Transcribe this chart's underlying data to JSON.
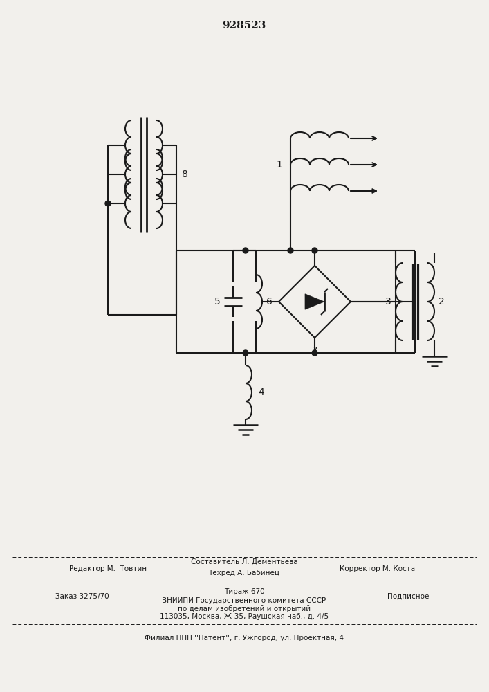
{
  "title": "928523",
  "bg_color": "#f2f0ec",
  "line_color": "#1a1a1a",
  "lw": 1.5,
  "footer": {
    "l1_left": "Редактор М.  Товтин",
    "l1_center_top": "Составитель Л. Дементьева",
    "l1_center_bot": "Техред А. Бабинец",
    "l1_right": "Корректор М. Коста",
    "l2_left": "Заказ 3275/70",
    "l2_center": "Тираж 670",
    "l2_right": "Подписное",
    "l3": "ВНИИПИ Государственного комитета СССР",
    "l4": "по делам изобретений и открытий",
    "l5": "113035, Москва, Ж-35, Раушская наб., д. 4/5",
    "l6": "Филиал ППП ''Патент'', г. Ужгород, ул. Проектная, 4"
  }
}
